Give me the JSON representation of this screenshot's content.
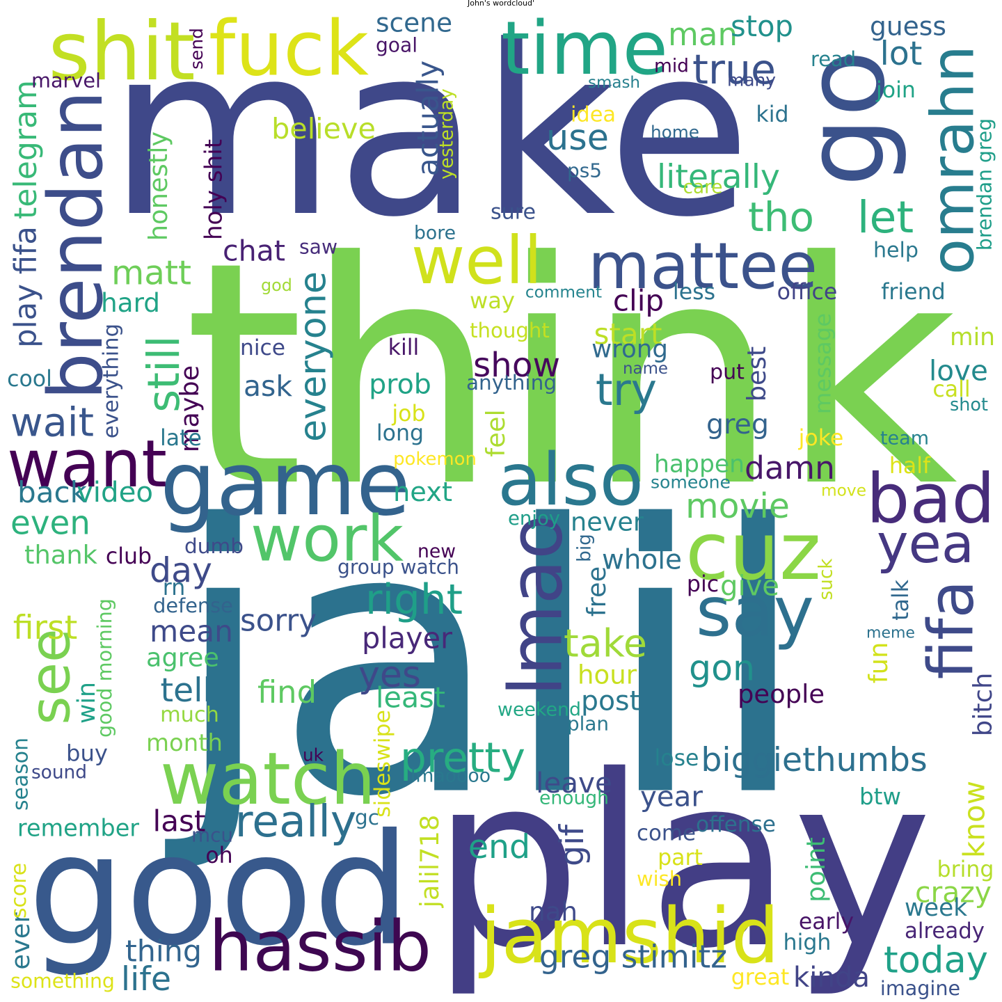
{
  "title": "John's wordcloud'",
  "palette": "viridis",
  "background": "#ffffff",
  "words": [
    {
      "text": "jalil",
      "color": "#2c728e",
      "rotated": false
    },
    {
      "text": "make",
      "color": "#3f4889",
      "rotated": false
    },
    {
      "text": "think",
      "color": "#7ad151",
      "rotated": false
    },
    {
      "text": "play",
      "color": "#433e85",
      "rotated": false
    },
    {
      "text": "good",
      "color": "#38598c",
      "rotated": false
    },
    {
      "text": "go",
      "color": "#3b528b",
      "rotated": true
    },
    {
      "text": "game",
      "color": "#33638d",
      "rotated": false
    },
    {
      "text": "time",
      "color": "#21a585",
      "rotated": false
    },
    {
      "text": "fuck",
      "color": "#dde318",
      "rotated": false
    },
    {
      "text": "shit",
      "color": "#c2df23",
      "rotated": false
    },
    {
      "text": "brendan",
      "color": "#3d4d8a",
      "rotated": true
    },
    {
      "text": "omrahn",
      "color": "#287d8e",
      "rotated": true
    },
    {
      "text": "mattee",
      "color": "#3b528b",
      "rotated": false
    },
    {
      "text": "well",
      "color": "#d0e11c",
      "rotated": false
    },
    {
      "text": "want",
      "color": "#440154",
      "rotated": false
    },
    {
      "text": "watch",
      "color": "#7ad151",
      "rotated": false
    },
    {
      "text": "also",
      "color": "#2a778e",
      "rotated": false
    },
    {
      "text": "work",
      "color": "#52c569",
      "rotated": false
    },
    {
      "text": "bad",
      "color": "#472c7a",
      "rotated": false
    },
    {
      "text": "cuz",
      "color": "#8bd646",
      "rotated": false
    },
    {
      "text": "say",
      "color": "#2d708e",
      "rotated": false
    },
    {
      "text": "lmao",
      "color": "#414487",
      "rotated": true
    },
    {
      "text": "yea",
      "color": "#453882",
      "rotated": false
    },
    {
      "text": "fifa",
      "color": "#3e4a89",
      "rotated": true
    },
    {
      "text": "see",
      "color": "#7ad151",
      "rotated": true
    },
    {
      "text": "jamshid",
      "color": "#d8e219",
      "rotated": false
    },
    {
      "text": "hassib",
      "color": "#3e0751",
      "rotated": false
    },
    {
      "text": "biggiethumbs",
      "color": "#2d708e",
      "rotated": false
    },
    {
      "text": "pretty",
      "color": "#27ad81",
      "rotated": false
    },
    {
      "text": "really",
      "color": "#2d708e",
      "rotated": false
    },
    {
      "text": "right",
      "color": "#1f9f88",
      "rotated": false
    },
    {
      "text": "movie",
      "color": "#5ec962",
      "rotated": false
    },
    {
      "text": "man",
      "color": "#5ec962",
      "rotated": false
    },
    {
      "text": "true",
      "color": "#3b528b",
      "rotated": false
    },
    {
      "text": "stop",
      "color": "#21918c",
      "rotated": false
    },
    {
      "text": "guess",
      "color": "#33638d",
      "rotated": false
    },
    {
      "text": "lot",
      "color": "#2c728e",
      "rotated": false
    },
    {
      "text": "tho",
      "color": "#3dbc74",
      "rotated": false
    },
    {
      "text": "let",
      "color": "#2db27d",
      "rotated": false
    },
    {
      "text": "use",
      "color": "#2c728e",
      "rotated": false
    },
    {
      "text": "literally",
      "color": "#35b779",
      "rotated": false
    },
    {
      "text": "matt",
      "color": "#6ece58",
      "rotated": false
    },
    {
      "text": "wait",
      "color": "#39568c",
      "rotated": false
    },
    {
      "text": "still",
      "color": "#3dbc74",
      "rotated": true
    },
    {
      "text": "show",
      "color": "#46085c",
      "rotated": false
    },
    {
      "text": "try",
      "color": "#2a788e",
      "rotated": false
    },
    {
      "text": "even",
      "color": "#2db27d",
      "rotated": false
    },
    {
      "text": "everyone",
      "color": "#26828e",
      "rotated": true
    },
    {
      "text": "day",
      "color": "#3e4a89",
      "rotated": false
    },
    {
      "text": "damn",
      "color": "#481769",
      "rotated": false
    },
    {
      "text": "actually",
      "color": "#39568c",
      "rotated": true
    },
    {
      "text": "mean",
      "color": "#3e4a89",
      "rotated": false
    },
    {
      "text": "take",
      "color": "#a0da39",
      "rotated": false
    },
    {
      "text": "yes",
      "color": "#3f4889",
      "rotated": false
    },
    {
      "text": "gon",
      "color": "#21918c",
      "rotated": false
    },
    {
      "text": "know",
      "color": "#cae11f",
      "rotated": true
    },
    {
      "text": "today",
      "color": "#1fa188",
      "rotated": false
    },
    {
      "text": "greg stimitz",
      "color": "#33638d",
      "rotated": false
    },
    {
      "text": "kinda",
      "color": "#414487",
      "rotated": false
    },
    {
      "text": "thing",
      "color": "#32648e",
      "rotated": false
    },
    {
      "text": "life",
      "color": "#2c728e",
      "rotated": false
    },
    {
      "text": "scene",
      "color": "#31688e",
      "rotated": false
    },
    {
      "text": "believe",
      "color": "#b8de29",
      "rotated": false
    },
    {
      "text": "chat",
      "color": "#482173",
      "rotated": false
    },
    {
      "text": "honestly",
      "color": "#5ec962",
      "rotated": true
    },
    {
      "text": "telegram",
      "color": "#38b977",
      "rotated": true
    },
    {
      "text": "play fifa",
      "color": "#3b528b",
      "rotated": true
    },
    {
      "text": "marvel",
      "color": "#481668",
      "rotated": false
    },
    {
      "text": "send",
      "color": "#440154",
      "rotated": true
    },
    {
      "text": "goal",
      "color": "#481467",
      "rotated": false
    },
    {
      "text": "yesterday",
      "color": "#bddf26",
      "rotated": true
    },
    {
      "text": "mid",
      "color": "#440154",
      "rotated": false
    },
    {
      "text": "smash",
      "color": "#27808e",
      "rotated": false
    },
    {
      "text": "many",
      "color": "#3e4a89",
      "rotated": false
    },
    {
      "text": "read",
      "color": "#26828e",
      "rotated": false
    },
    {
      "text": "join",
      "color": "#20a386",
      "rotated": false
    },
    {
      "text": "kid",
      "color": "#2c728e",
      "rotated": false
    },
    {
      "text": "idea",
      "color": "#fde725",
      "rotated": false
    },
    {
      "text": "home",
      "color": "#31688e",
      "rotated": false
    },
    {
      "text": "ps5",
      "color": "#31688e",
      "rotated": false
    },
    {
      "text": "care",
      "color": "#addc30",
      "rotated": false
    },
    {
      "text": "sure",
      "color": "#3b528b",
      "rotated": false
    },
    {
      "text": "bore",
      "color": "#2c728e",
      "rotated": false
    },
    {
      "text": "saw",
      "color": "#472d7b",
      "rotated": false
    },
    {
      "text": "holy shit",
      "color": "#440154",
      "rotated": true
    },
    {
      "text": "brendan greg",
      "color": "#1f9e89",
      "rotated": true
    },
    {
      "text": "help",
      "color": "#2a788e",
      "rotated": false
    },
    {
      "text": "god",
      "color": "#a2da37",
      "rotated": false
    },
    {
      "text": "comment",
      "color": "#25848e",
      "rotated": false
    },
    {
      "text": "less",
      "color": "#2c728e",
      "rotated": false
    },
    {
      "text": "office",
      "color": "#414487",
      "rotated": false
    },
    {
      "text": "friend",
      "color": "#2a788e",
      "rotated": false
    },
    {
      "text": "hard",
      "color": "#20a386",
      "rotated": false
    },
    {
      "text": "way",
      "color": "#bddf26",
      "rotated": false
    },
    {
      "text": "clip",
      "color": "#440154",
      "rotated": false
    },
    {
      "text": "start",
      "color": "#bddf26",
      "rotated": false
    },
    {
      "text": "wrong",
      "color": "#306a8e",
      "rotated": false
    },
    {
      "text": "min",
      "color": "#b5de2b",
      "rotated": false
    },
    {
      "text": "thought",
      "color": "#c5e021",
      "rotated": false
    },
    {
      "text": "kill",
      "color": "#481668",
      "rotated": false
    },
    {
      "text": "nice",
      "color": "#3e4989",
      "rotated": false
    },
    {
      "text": "name",
      "color": "#3b528b",
      "rotated": false
    },
    {
      "text": "put",
      "color": "#440154",
      "rotated": false
    },
    {
      "text": "best",
      "color": "#3e4a89",
      "rotated": true
    },
    {
      "text": "message",
      "color": "#5ec962",
      "rotated": true
    },
    {
      "text": "love",
      "color": "#238a8d",
      "rotated": false
    },
    {
      "text": "cool",
      "color": "#2a788e",
      "rotated": false
    },
    {
      "text": "everything",
      "color": "#3b528b",
      "rotated": true
    },
    {
      "text": "maybe",
      "color": "#440154",
      "rotated": true
    },
    {
      "text": "ask",
      "color": "#32648e",
      "rotated": false
    },
    {
      "text": "prob",
      "color": "#20a386",
      "rotated": false
    },
    {
      "text": "anything",
      "color": "#33638d",
      "rotated": false
    },
    {
      "text": "call",
      "color": "#c8e020",
      "rotated": false
    },
    {
      "text": "shot",
      "color": "#238a8d",
      "rotated": false
    },
    {
      "text": "job",
      "color": "#d8e219",
      "rotated": false
    },
    {
      "text": "long",
      "color": "#2c728e",
      "rotated": false
    },
    {
      "text": "feel",
      "color": "#addc30",
      "rotated": true
    },
    {
      "text": "greg",
      "color": "#33638d",
      "rotated": false
    },
    {
      "text": "joke",
      "color": "#fde725",
      "rotated": false
    },
    {
      "text": "team",
      "color": "#26828e",
      "rotated": false
    },
    {
      "text": "late",
      "color": "#2a788e",
      "rotated": false
    },
    {
      "text": "pokemon",
      "color": "#fde725",
      "rotated": false
    },
    {
      "text": "happen",
      "color": "#4ac16d",
      "rotated": false
    },
    {
      "text": "half",
      "color": "#dde318",
      "rotated": false
    },
    {
      "text": "back",
      "color": "#2a788e",
      "rotated": false
    },
    {
      "text": "video",
      "color": "#20a386",
      "rotated": false
    },
    {
      "text": "next",
      "color": "#21a585",
      "rotated": false
    },
    {
      "text": "someone",
      "color": "#25848e",
      "rotated": false
    },
    {
      "text": "move",
      "color": "#d2e21b",
      "rotated": false
    },
    {
      "text": "enjoy",
      "color": "#1f9e89",
      "rotated": false
    },
    {
      "text": "thank",
      "color": "#54c568",
      "rotated": false
    },
    {
      "text": "club",
      "color": "#440154",
      "rotated": false
    },
    {
      "text": "dumb",
      "color": "#3e4a89",
      "rotated": false
    },
    {
      "text": "never",
      "color": "#26828e",
      "rotated": false
    },
    {
      "text": "big",
      "color": "#31688e",
      "rotated": true
    },
    {
      "text": "new",
      "color": "#440154",
      "rotated": false
    },
    {
      "text": "whole",
      "color": "#2c728e",
      "rotated": false
    },
    {
      "text": "group watch",
      "color": "#3b528b",
      "rotated": false
    },
    {
      "text": "suck",
      "color": "#c2df23",
      "rotated": true
    },
    {
      "text": "rn",
      "color": "#2c728e",
      "rotated": false
    },
    {
      "text": "defense",
      "color": "#33638d",
      "rotated": false
    },
    {
      "text": "pic",
      "color": "#440154",
      "rotated": false
    },
    {
      "text": "give",
      "color": "#5ec962",
      "rotated": false
    },
    {
      "text": "talk",
      "color": "#31688e",
      "rotated": true
    },
    {
      "text": "free",
      "color": "#2c728e",
      "rotated": true
    },
    {
      "text": "first",
      "color": "#bddf26",
      "rotated": false
    },
    {
      "text": "sorry",
      "color": "#3b528b",
      "rotated": false
    },
    {
      "text": "player",
      "color": "#482878",
      "rotated": false
    },
    {
      "text": "meme",
      "color": "#2c728e",
      "rotated": false
    },
    {
      "text": "agree",
      "color": "#4ac16d",
      "rotated": false
    },
    {
      "text": "good morning",
      "color": "#5ec962",
      "rotated": true
    },
    {
      "text": "hour",
      "color": "#c8e020",
      "rotated": false
    },
    {
      "text": "fun",
      "color": "#d2e21b",
      "rotated": true
    },
    {
      "text": "win",
      "color": "#1fa188",
      "rotated": true
    },
    {
      "text": "tell",
      "color": "#2c728e",
      "rotated": false
    },
    {
      "text": "find",
      "color": "#5ec962",
      "rotated": false
    },
    {
      "text": "people",
      "color": "#440154",
      "rotated": false
    },
    {
      "text": "post",
      "color": "#2a788e",
      "rotated": false
    },
    {
      "text": "least",
      "color": "#35b779",
      "rotated": false
    },
    {
      "text": "bitch",
      "color": "#404688",
      "rotated": true
    },
    {
      "text": "much",
      "color": "#95d840",
      "rotated": false
    },
    {
      "text": "weekend",
      "color": "#22a785",
      "rotated": false
    },
    {
      "text": "plan",
      "color": "#2a788e",
      "rotated": false
    },
    {
      "text": "month",
      "color": "#7ad151",
      "rotated": false
    },
    {
      "text": "sideswipe",
      "color": "#d8e219",
      "rotated": true
    },
    {
      "text": "season",
      "color": "#26828e",
      "rotated": true
    },
    {
      "text": "buy",
      "color": "#3b528b",
      "rotated": false
    },
    {
      "text": "uk",
      "color": "#440154",
      "rotated": false
    },
    {
      "text": "sound",
      "color": "#3e4989",
      "rotated": false
    },
    {
      "text": "lose",
      "color": "#26828e",
      "rotated": false
    },
    {
      "text": "lmaoooo",
      "color": "#2a788e",
      "rotated": false
    },
    {
      "text": "leave",
      "color": "#3e4a89",
      "rotated": false
    },
    {
      "text": "enough",
      "color": "#35b779",
      "rotated": false
    },
    {
      "text": "year",
      "color": "#3b528b",
      "rotated": false
    },
    {
      "text": "btw",
      "color": "#1f9e89",
      "rotated": false
    },
    {
      "text": "remember",
      "color": "#20a386",
      "rotated": false
    },
    {
      "text": "last",
      "color": "#440154",
      "rotated": false
    },
    {
      "text": "gc",
      "color": "#2c728e",
      "rotated": false
    },
    {
      "text": "gif",
      "color": "#3e4a89",
      "rotated": true
    },
    {
      "text": "jalil718",
      "color": "#c2df23",
      "rotated": true
    },
    {
      "text": "come",
      "color": "#3b528b",
      "rotated": false
    },
    {
      "text": "offense",
      "color": "#2d708e",
      "rotated": false
    },
    {
      "text": "point",
      "color": "#3dbc74",
      "rotated": true
    },
    {
      "text": "crazy",
      "color": "#8bd646",
      "rotated": false
    },
    {
      "text": "mcu",
      "color": "#3b528b",
      "rotated": false
    },
    {
      "text": "oh",
      "color": "#440154",
      "rotated": false
    },
    {
      "text": "end",
      "color": "#1fa188",
      "rotated": false
    },
    {
      "text": "part",
      "color": "#d8e219",
      "rotated": false
    },
    {
      "text": "wish",
      "color": "#fde725",
      "rotated": false
    },
    {
      "text": "bring",
      "color": "#b5de2b",
      "rotated": false
    },
    {
      "text": "week",
      "color": "#2a788e",
      "rotated": false
    },
    {
      "text": "ever",
      "color": "#2a788e",
      "rotated": true
    },
    {
      "text": "score",
      "color": "#d8e219",
      "rotated": true
    },
    {
      "text": "nah",
      "color": "#3e4989",
      "rotated": false
    },
    {
      "text": "early",
      "color": "#481467",
      "rotated": false
    },
    {
      "text": "already",
      "color": "#482576",
      "rotated": false
    },
    {
      "text": "high",
      "color": "#2a788e",
      "rotated": false
    },
    {
      "text": "something",
      "color": "#dde318",
      "rotated": false
    },
    {
      "text": "great",
      "color": "#fde725",
      "rotated": false
    },
    {
      "text": "imagine",
      "color": "#3b528b",
      "rotated": false
    }
  ]
}
